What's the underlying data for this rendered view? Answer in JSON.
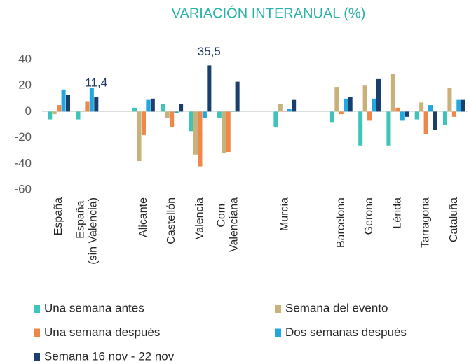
{
  "chart_data": {
    "type": "bar",
    "title": "VARIACIÓN INTERANUAL (%)",
    "categories": [
      "España",
      "España (sin Valencia)",
      null,
      "Alicante",
      "Castellón",
      "Valencia",
      "Com. Valenciana",
      null,
      "Murcia",
      null,
      "Barcelona",
      "Gerona",
      "Lérida",
      "Tarragona",
      "Cataluña"
    ],
    "series": [
      {
        "name": "Una semana antes",
        "color": "#3ec4b8",
        "values": [
          -6,
          -6,
          null,
          3,
          6,
          -15,
          -5,
          null,
          -12,
          null,
          -8,
          -26,
          -26,
          -6,
          -10
        ]
      },
      {
        "name": "Semana del evento",
        "color": "#c9b17a",
        "values": [
          -2,
          0.5,
          null,
          -38,
          -5,
          -33,
          -32,
          null,
          6,
          null,
          19,
          20,
          29,
          7,
          18
        ]
      },
      {
        "name": "Una semana después",
        "color": "#f0874a",
        "values": [
          5,
          8,
          null,
          -18,
          -12,
          -42,
          -31,
          null,
          0.5,
          null,
          -2,
          -7,
          3,
          -17,
          -4
        ]
      },
      {
        "name": "Dos semanas después",
        "color": "#22a8e0",
        "values": [
          17,
          18,
          null,
          9,
          -1,
          -5,
          0.5,
          null,
          2,
          null,
          10,
          10,
          -7,
          5,
          9
        ]
      },
      {
        "name": "Semana 16 nov - 22 nov",
        "color": "#1a3e6e",
        "values": [
          13,
          11.4,
          null,
          10,
          6,
          35.5,
          23,
          null,
          9,
          null,
          11,
          25,
          -4,
          -14,
          9
        ],
        "value_labels": [
          null,
          "11,4",
          null,
          null,
          null,
          "35,5",
          null,
          null,
          null,
          null,
          null,
          null,
          null,
          null,
          null
        ]
      }
    ],
    "ylim": [
      -60,
      40
    ],
    "yticks": [
      -60,
      -40,
      -20,
      0,
      20,
      40
    ],
    "grid": false
  }
}
